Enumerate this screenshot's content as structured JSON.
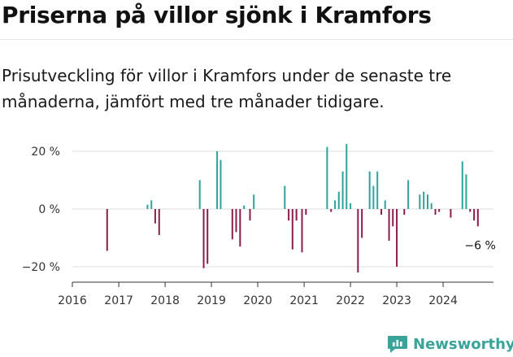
{
  "title": "Priserna på villor sjönk i Kramfors",
  "subtitle": "Prisutveckling för villor i Kramfors under de senaste tre månaderna, jämfört med tre månader tidigare.",
  "brand": {
    "name": "Newsworthy",
    "icon": "newsworthy-logo-icon"
  },
  "colors": {
    "positive": "#2fa39a",
    "negative": "#8c1d4a",
    "grid": "#dcdcdc",
    "axis": "#333333"
  },
  "chart_data": {
    "type": "bar",
    "title": "Priserna på villor sjönk i Kramfors",
    "xlabel": "",
    "ylabel": "",
    "xlim": [
      "2016-01-01",
      "2025-02-01"
    ],
    "ylim": [
      -25,
      25
    ],
    "y_ticks": [
      20,
      0,
      -20
    ],
    "y_tick_labels": [
      "20 %",
      "0 %",
      "−20 %"
    ],
    "x_ticks": [
      "2016",
      "2017",
      "2018",
      "2019",
      "2020",
      "2021",
      "2022",
      "2023",
      "2024"
    ],
    "grid": true,
    "annotation": {
      "text": "−6 %",
      "date": "2024-10-01",
      "value": -6
    },
    "series": [
      {
        "values": [
          {
            "date": "2016-10-01",
            "value": -14.5
          },
          {
            "date": "2017-08-15",
            "value": 1.5
          },
          {
            "date": "2017-09-15",
            "value": 3
          },
          {
            "date": "2017-10-15",
            "value": -5
          },
          {
            "date": "2017-11-15",
            "value": -9
          },
          {
            "date": "2018-10-01",
            "value": 10
          },
          {
            "date": "2018-11-01",
            "value": -20.5
          },
          {
            "date": "2018-12-01",
            "value": -19
          },
          {
            "date": "2019-02-15",
            "value": 20
          },
          {
            "date": "2019-03-15",
            "value": 17
          },
          {
            "date": "2019-06-15",
            "value": -10.5
          },
          {
            "date": "2019-07-15",
            "value": -8
          },
          {
            "date": "2019-08-15",
            "value": -13
          },
          {
            "date": "2019-09-15",
            "value": 1.2
          },
          {
            "date": "2019-11-01",
            "value": -4
          },
          {
            "date": "2019-12-01",
            "value": 5
          },
          {
            "date": "2020-08-01",
            "value": 8
          },
          {
            "date": "2020-09-01",
            "value": -4
          },
          {
            "date": "2020-10-01",
            "value": -14
          },
          {
            "date": "2020-11-01",
            "value": -4
          },
          {
            "date": "2020-12-15",
            "value": -15
          },
          {
            "date": "2021-01-15",
            "value": -2
          },
          {
            "date": "2021-07-01",
            "value": 21.5
          },
          {
            "date": "2021-08-01",
            "value": -1
          },
          {
            "date": "2021-09-01",
            "value": 3
          },
          {
            "date": "2021-10-01",
            "value": 6
          },
          {
            "date": "2021-11-01",
            "value": 13
          },
          {
            "date": "2021-12-01",
            "value": 22.5
          },
          {
            "date": "2022-01-01",
            "value": 2
          },
          {
            "date": "2022-03-01",
            "value": -22
          },
          {
            "date": "2022-04-01",
            "value": -10
          },
          {
            "date": "2022-06-01",
            "value": 13
          },
          {
            "date": "2022-07-01",
            "value": 8
          },
          {
            "date": "2022-08-01",
            "value": 13
          },
          {
            "date": "2022-09-01",
            "value": -2
          },
          {
            "date": "2022-10-01",
            "value": 3
          },
          {
            "date": "2022-11-01",
            "value": -11
          },
          {
            "date": "2022-12-01",
            "value": -6
          },
          {
            "date": "2023-01-01",
            "value": -20
          },
          {
            "date": "2023-03-01",
            "value": -2
          },
          {
            "date": "2023-04-01",
            "value": 10
          },
          {
            "date": "2023-07-01",
            "value": 5
          },
          {
            "date": "2023-08-01",
            "value": 6
          },
          {
            "date": "2023-09-01",
            "value": 5
          },
          {
            "date": "2023-10-01",
            "value": 2
          },
          {
            "date": "2023-11-01",
            "value": -2
          },
          {
            "date": "2023-12-01",
            "value": -1
          },
          {
            "date": "2024-03-01",
            "value": -3
          },
          {
            "date": "2024-06-01",
            "value": 16.5
          },
          {
            "date": "2024-07-01",
            "value": 12
          },
          {
            "date": "2024-08-01",
            "value": -1
          },
          {
            "date": "2024-09-01",
            "value": -4
          },
          {
            "date": "2024-10-01",
            "value": -6
          }
        ]
      }
    ]
  }
}
